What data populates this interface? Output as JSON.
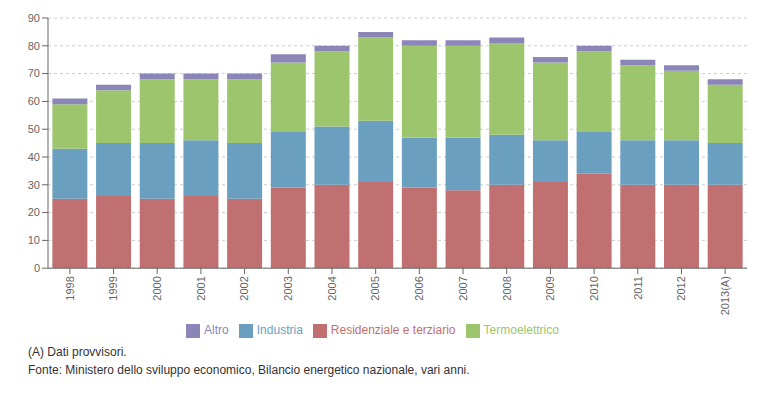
{
  "chart_data": {
    "type": "bar",
    "stacked": true,
    "categories": [
      "1998",
      "1999",
      "2000",
      "2001",
      "2002",
      "2003",
      "2004",
      "2005",
      "2006",
      "2007",
      "2008",
      "2009",
      "2010",
      "2011",
      "2012",
      "2013(A)"
    ],
    "series": [
      {
        "name": "Residenziale e terziario",
        "color": "#c07070",
        "values": [
          25,
          26,
          25,
          26,
          25,
          29,
          30,
          31,
          29,
          28,
          30,
          31,
          34,
          30,
          30,
          30
        ]
      },
      {
        "name": "Industria",
        "color": "#6a9fc0",
        "values": [
          18,
          19,
          20,
          20,
          20,
          20,
          21,
          22,
          18,
          19,
          18,
          15,
          15,
          16,
          16,
          15
        ]
      },
      {
        "name": "Termoelettrico",
        "color": "#9dc56e",
        "values": [
          16,
          19,
          23,
          22,
          23,
          25,
          27,
          30,
          33,
          33,
          33,
          28,
          29,
          27,
          25,
          21
        ]
      },
      {
        "name": "Altro",
        "color": "#8b85b8",
        "values": [
          2,
          2,
          2,
          2,
          2,
          3,
          2,
          2,
          2,
          2,
          2,
          2,
          2,
          2,
          2,
          2
        ]
      }
    ],
    "ylim": [
      0,
      90
    ],
    "yticks": [
      0,
      10,
      20,
      30,
      40,
      50,
      60,
      70,
      80,
      90
    ],
    "grid": true,
    "legend": "bottom",
    "annotations": [
      "(A) Dati provvisori.",
      "Fonte: Ministero dello sviluppo economico, Bilancio energetico nazionale, vari anni."
    ]
  }
}
